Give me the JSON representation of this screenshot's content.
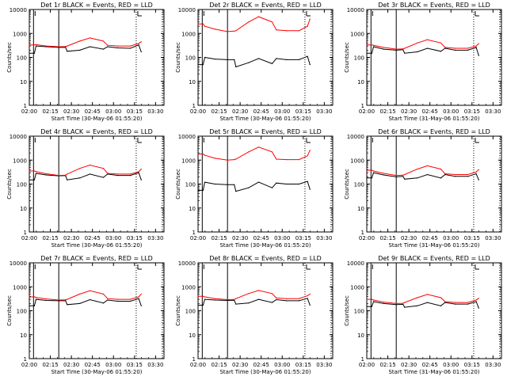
{
  "figure": {
    "xlabels": {
      "a": "Start Time (30-May-06 01:55:20)",
      "b": "Start Time (31-May-06 01:55:20)"
    },
    "ylabel": "Counts/sec"
  },
  "chart_data": [
    {
      "type": "line",
      "title": "Det 1r BLACK = Events, RED = LLD",
      "xlabel": "Start Time (30-May-06 01:55:20)",
      "ylabel": "Counts/sec",
      "xlim_hours": [
        2.0,
        3.6
      ],
      "ylim": [
        1,
        10000
      ],
      "yscale": "log",
      "xticks": [
        "02:00",
        "02:15",
        "02:30",
        "02:45",
        "03:00",
        "03:15",
        "03:30"
      ],
      "yticks": [
        "1",
        "10",
        "100",
        "1000",
        "10000"
      ],
      "solid_markers_hours": [
        2.05,
        2.35
      ],
      "dotted_markers_hours": [
        3.27,
        3.58
      ],
      "series": [
        {
          "name": "Events",
          "color": "#000000",
          "x": [
            2.0,
            2.06,
            2.08,
            2.2,
            2.35,
            2.43,
            2.45,
            2.6,
            2.72,
            2.88,
            2.93,
            3.05,
            3.2,
            3.3,
            3.33
          ],
          "y": [
            150,
            150,
            300,
            280,
            260,
            265,
            180,
            200,
            280,
            220,
            280,
            250,
            240,
            330,
            170
          ]
        },
        {
          "name": "LLD",
          "color": "#ff0000",
          "x": [
            2.0,
            2.06,
            2.08,
            2.2,
            2.35,
            2.43,
            2.45,
            2.6,
            2.72,
            2.88,
            2.93,
            3.05,
            3.2,
            3.3,
            3.33
          ],
          "y": [
            330,
            330,
            340,
            300,
            280,
            285,
            300,
            480,
            650,
            480,
            320,
            300,
            300,
            380,
            450
          ]
        }
      ]
    },
    {
      "type": "line",
      "title": "Det 2r BLACK = Events, RED = LLD",
      "xlabel": "Start Time (30-May-06 01:55:20)",
      "ylabel": "Counts/sec",
      "xlim_hours": [
        2.0,
        3.6
      ],
      "ylim": [
        1,
        10000
      ],
      "yscale": "log",
      "xticks": [
        "02:00",
        "02:15",
        "02:30",
        "02:45",
        "03:00",
        "03:15",
        "03:30"
      ],
      "yticks": [
        "1",
        "10",
        "100",
        "1000",
        "10000"
      ],
      "solid_markers_hours": [
        2.05,
        2.35
      ],
      "dotted_markers_hours": [
        3.27,
        3.58
      ],
      "series": [
        {
          "name": "Events",
          "color": "#000000",
          "x": [
            2.0,
            2.06,
            2.08,
            2.2,
            2.35,
            2.43,
            2.45,
            2.6,
            2.72,
            2.88,
            2.93,
            3.05,
            3.2,
            3.3,
            3.33
          ],
          "y": [
            50,
            50,
            100,
            85,
            80,
            80,
            40,
            60,
            90,
            55,
            90,
            80,
            80,
            110,
            50
          ]
        },
        {
          "name": "LLD",
          "color": "#ff0000",
          "x": [
            2.0,
            2.06,
            2.08,
            2.2,
            2.35,
            2.43,
            2.45,
            2.6,
            2.72,
            2.88,
            2.93,
            3.05,
            3.2,
            3.3,
            3.33
          ],
          "y": [
            2500,
            2500,
            2000,
            1500,
            1200,
            1250,
            1300,
            3000,
            5000,
            3000,
            1400,
            1300,
            1300,
            2000,
            4000
          ]
        }
      ]
    },
    {
      "type": "line",
      "title": "Det 3r BLACK = Events, RED = LLD",
      "xlabel": "Start Time (31-May-06 01:55:20)",
      "ylabel": "Counts/sec",
      "xlim_hours": [
        2.0,
        3.6
      ],
      "ylim": [
        1,
        10000
      ],
      "yscale": "log",
      "xticks": [
        "02:00",
        "02:15",
        "02:30",
        "02:45",
        "03:00",
        "03:15",
        "03:30"
      ],
      "yticks": [
        "1",
        "10",
        "100",
        "1000",
        "10000"
      ],
      "solid_markers_hours": [
        2.05,
        2.35
      ],
      "dotted_markers_hours": [
        3.27,
        3.58
      ],
      "series": [
        {
          "name": "Events",
          "color": "#000000",
          "x": [
            2.0,
            2.06,
            2.08,
            2.2,
            2.35,
            2.43,
            2.45,
            2.6,
            2.72,
            2.88,
            2.93,
            3.05,
            3.2,
            3.3,
            3.33
          ],
          "y": [
            150,
            150,
            280,
            220,
            200,
            210,
            150,
            170,
            240,
            180,
            240,
            200,
            200,
            260,
            120
          ]
        },
        {
          "name": "LLD",
          "color": "#ff0000",
          "x": [
            2.0,
            2.06,
            2.08,
            2.2,
            2.35,
            2.43,
            2.45,
            2.6,
            2.72,
            2.88,
            2.93,
            3.05,
            3.2,
            3.3,
            3.33
          ],
          "y": [
            330,
            330,
            320,
            260,
            220,
            225,
            240,
            400,
            550,
            400,
            260,
            240,
            240,
            300,
            380
          ]
        }
      ]
    },
    {
      "type": "line",
      "title": "Det 4r BLACK = Events, RED = LLD",
      "xlabel": "Start Time (30-May-06 01:55:20)",
      "ylabel": "Counts/sec",
      "xlim_hours": [
        2.0,
        3.6
      ],
      "ylim": [
        1,
        10000
      ],
      "yscale": "log",
      "xticks": [
        "02:00",
        "02:15",
        "02:30",
        "02:45",
        "03:00",
        "03:15",
        "03:30"
      ],
      "yticks": [
        "1",
        "10",
        "100",
        "1000",
        "10000"
      ],
      "solid_markers_hours": [
        2.05,
        2.35
      ],
      "dotted_markers_hours": [
        3.27,
        3.58
      ],
      "series": [
        {
          "name": "Events",
          "color": "#000000",
          "x": [
            2.0,
            2.06,
            2.08,
            2.2,
            2.35,
            2.43,
            2.45,
            2.6,
            2.72,
            2.88,
            2.93,
            3.05,
            3.2,
            3.3,
            3.33
          ],
          "y": [
            150,
            150,
            280,
            240,
            220,
            225,
            150,
            180,
            260,
            190,
            260,
            230,
            230,
            300,
            150
          ]
        },
        {
          "name": "LLD",
          "color": "#ff0000",
          "x": [
            2.0,
            2.06,
            2.08,
            2.2,
            2.35,
            2.43,
            2.45,
            2.6,
            2.72,
            2.88,
            2.93,
            3.05,
            3.2,
            3.3,
            3.33
          ],
          "y": [
            350,
            350,
            330,
            270,
            230,
            235,
            260,
            450,
            620,
            450,
            280,
            260,
            260,
            330,
            420
          ]
        }
      ]
    },
    {
      "type": "line",
      "title": "Det 5r BLACK = Events, RED = LLD",
      "xlabel": "Start Time (30-May-06 01:55:20)",
      "ylabel": "Counts/sec",
      "xlim_hours": [
        2.0,
        3.6
      ],
      "ylim": [
        1,
        10000
      ],
      "yscale": "log",
      "xticks": [
        "02:00",
        "02:15",
        "02:30",
        "02:45",
        "03:00",
        "03:15",
        "03:30"
      ],
      "yticks": [
        "1",
        "10",
        "100",
        "1000",
        "10000"
      ],
      "solid_markers_hours": [
        2.05,
        2.35
      ],
      "dotted_markers_hours": [
        3.27,
        3.58
      ],
      "series": [
        {
          "name": "Events",
          "color": "#000000",
          "x": [
            2.0,
            2.06,
            2.08,
            2.2,
            2.35,
            2.43,
            2.45,
            2.6,
            2.72,
            2.88,
            2.93,
            3.05,
            3.2,
            3.3,
            3.33
          ],
          "y": [
            55,
            55,
            120,
            100,
            95,
            95,
            50,
            70,
            120,
            70,
            110,
            100,
            100,
            130,
            60
          ]
        },
        {
          "name": "LLD",
          "color": "#ff0000",
          "x": [
            2.0,
            2.06,
            2.08,
            2.2,
            2.35,
            2.43,
            2.45,
            2.6,
            2.72,
            2.88,
            2.93,
            3.05,
            3.2,
            3.3,
            3.33
          ],
          "y": [
            1800,
            1800,
            1600,
            1200,
            1000,
            1050,
            1100,
            2200,
            3500,
            2200,
            1100,
            1050,
            1050,
            1500,
            2600
          ]
        }
      ]
    },
    {
      "type": "line",
      "title": "Det 6r BLACK = Events, RED = LLD",
      "xlabel": "Start Time (31-May-06 01:55:20)",
      "ylabel": "Counts/sec",
      "xlim_hours": [
        2.0,
        3.6
      ],
      "ylim": [
        1,
        10000
      ],
      "yscale": "log",
      "xticks": [
        "02:00",
        "02:15",
        "02:30",
        "02:45",
        "03:00",
        "03:15",
        "03:30"
      ],
      "yticks": [
        "1",
        "10",
        "100",
        "1000",
        "10000"
      ],
      "solid_markers_hours": [
        2.05,
        2.35
      ],
      "dotted_markers_hours": [
        3.27,
        3.58
      ],
      "series": [
        {
          "name": "Events",
          "color": "#000000",
          "x": [
            2.0,
            2.06,
            2.08,
            2.2,
            2.35,
            2.43,
            2.45,
            2.6,
            2.72,
            2.88,
            2.93,
            3.05,
            3.2,
            3.3,
            3.33
          ],
          "y": [
            180,
            180,
            300,
            240,
            200,
            210,
            160,
            180,
            250,
            180,
            250,
            210,
            210,
            270,
            150
          ]
        },
        {
          "name": "LLD",
          "color": "#ff0000",
          "x": [
            2.0,
            2.06,
            2.08,
            2.2,
            2.35,
            2.43,
            2.45,
            2.6,
            2.72,
            2.88,
            2.93,
            3.05,
            3.2,
            3.3,
            3.33
          ],
          "y": [
            380,
            380,
            350,
            280,
            230,
            235,
            250,
            420,
            580,
            420,
            270,
            250,
            250,
            320,
            400
          ]
        }
      ]
    },
    {
      "type": "line",
      "title": "Det 7r BLACK = Events, RED = LLD",
      "xlabel": "Start Time (30-May-06 01:55:20)",
      "ylabel": "Counts/sec",
      "xlim_hours": [
        2.0,
        3.6
      ],
      "ylim": [
        1,
        10000
      ],
      "yscale": "log",
      "xticks": [
        "02:00",
        "02:15",
        "02:30",
        "02:45",
        "03:00",
        "03:15",
        "03:30"
      ],
      "yticks": [
        "1",
        "10",
        "100",
        "1000",
        "10000"
      ],
      "solid_markers_hours": [
        2.05,
        2.35
      ],
      "dotted_markers_hours": [
        3.27,
        3.58
      ],
      "series": [
        {
          "name": "Events",
          "color": "#000000",
          "x": [
            2.0,
            2.06,
            2.08,
            2.2,
            2.35,
            2.43,
            2.45,
            2.6,
            2.72,
            2.88,
            2.93,
            3.05,
            3.2,
            3.3,
            3.33
          ],
          "y": [
            160,
            160,
            300,
            270,
            260,
            265,
            180,
            200,
            290,
            210,
            280,
            250,
            250,
            320,
            160
          ]
        },
        {
          "name": "LLD",
          "color": "#ff0000",
          "x": [
            2.0,
            2.06,
            2.08,
            2.2,
            2.35,
            2.43,
            2.45,
            2.6,
            2.72,
            2.88,
            2.93,
            3.05,
            3.2,
            3.3,
            3.33
          ],
          "y": [
            380,
            380,
            360,
            310,
            280,
            285,
            300,
            500,
            680,
            500,
            320,
            300,
            300,
            380,
            500
          ]
        }
      ]
    },
    {
      "type": "line",
      "title": "Det 8r BLACK = Events, RED = LLD",
      "xlabel": "Start Time (30-May-06 01:55:20)",
      "ylabel": "Counts/sec",
      "xlim_hours": [
        2.0,
        3.6
      ],
      "ylim": [
        1,
        10000
      ],
      "yscale": "log",
      "xticks": [
        "02:00",
        "02:15",
        "02:30",
        "02:45",
        "03:00",
        "03:15",
        "03:30"
      ],
      "yticks": [
        "1",
        "10",
        "100",
        "1000",
        "10000"
      ],
      "solid_markers_hours": [
        2.05,
        2.35
      ],
      "dotted_markers_hours": [
        3.27,
        3.58
      ],
      "series": [
        {
          "name": "Events",
          "color": "#000000",
          "x": [
            2.0,
            2.06,
            2.08,
            2.2,
            2.35,
            2.43,
            2.45,
            2.6,
            2.72,
            2.88,
            2.93,
            3.05,
            3.2,
            3.3,
            3.33
          ],
          "y": [
            170,
            170,
            300,
            280,
            270,
            275,
            190,
            210,
            300,
            220,
            290,
            260,
            260,
            330,
            170
          ]
        },
        {
          "name": "LLD",
          "color": "#ff0000",
          "x": [
            2.0,
            2.06,
            2.08,
            2.2,
            2.35,
            2.43,
            2.45,
            2.6,
            2.72,
            2.88,
            2.93,
            3.05,
            3.2,
            3.3,
            3.33
          ],
          "y": [
            400,
            400,
            380,
            320,
            290,
            295,
            320,
            520,
            700,
            520,
            340,
            320,
            320,
            420,
            500
          ]
        }
      ]
    },
    {
      "type": "line",
      "title": "Det 9r BLACK = Events, RED = LLD",
      "xlabel": "Start Time (31-May-06 01:55:20)",
      "ylabel": "Counts/sec",
      "xlim_hours": [
        2.0,
        3.6
      ],
      "ylim": [
        1,
        10000
      ],
      "yscale": "log",
      "xticks": [
        "02:00",
        "02:15",
        "02:30",
        "02:45",
        "03:00",
        "03:15",
        "03:30"
      ],
      "yticks": [
        "1",
        "10",
        "100",
        "1000",
        "10000"
      ],
      "solid_markers_hours": [
        2.05,
        2.35
      ],
      "dotted_markers_hours": [
        3.27,
        3.58
      ],
      "series": [
        {
          "name": "Events",
          "color": "#000000",
          "x": [
            2.0,
            2.06,
            2.08,
            2.2,
            2.35,
            2.43,
            2.45,
            2.6,
            2.72,
            2.88,
            2.93,
            3.05,
            3.2,
            3.3,
            3.33
          ],
          "y": [
            150,
            150,
            240,
            200,
            180,
            185,
            140,
            160,
            220,
            160,
            220,
            190,
            190,
            240,
            130
          ]
        },
        {
          "name": "LLD",
          "color": "#ff0000",
          "x": [
            2.0,
            2.06,
            2.08,
            2.2,
            2.35,
            2.43,
            2.45,
            2.6,
            2.72,
            2.88,
            2.93,
            3.05,
            3.2,
            3.3,
            3.33
          ],
          "y": [
            300,
            300,
            280,
            230,
            200,
            205,
            220,
            350,
            480,
            350,
            240,
            220,
            220,
            280,
            330
          ]
        }
      ]
    }
  ]
}
